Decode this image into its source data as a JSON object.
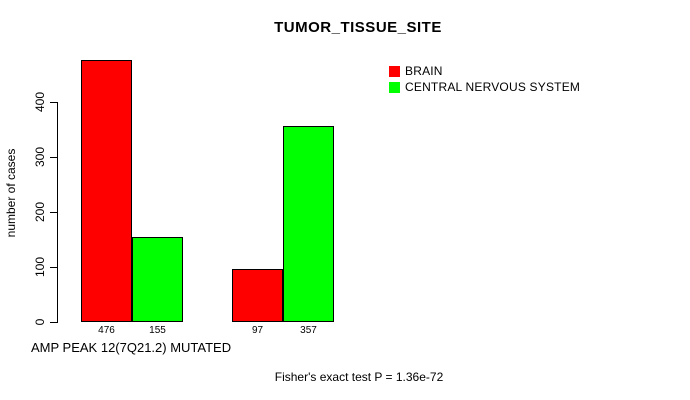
{
  "chart_data": {
    "type": "bar",
    "title": "TUMOR_TISSUE_SITE",
    "xlabel": "AMP PEAK 12(7Q21.2) MUTATED",
    "ylabel": "number of cases",
    "yticks": [
      0,
      100,
      200,
      300,
      400
    ],
    "ylim": [
      0,
      480
    ],
    "grid": false,
    "legend_position": "top-right",
    "categories": [
      "group-1",
      "group-2"
    ],
    "series": [
      {
        "name": "BRAIN",
        "color": "#ff0000",
        "values": [
          476,
          97
        ]
      },
      {
        "name": "CENTRAL NERVOUS SYSTEM",
        "color": "#00ff00",
        "values": [
          155,
          357
        ]
      }
    ],
    "bar_value_labels": [
      "476",
      "155",
      "97",
      "357"
    ],
    "annotation": "Fisher's exact test P = 1.36e-72"
  },
  "colors": {
    "background": "#ffffff",
    "text": "#000000",
    "axis": "#000000",
    "bar_border": "#000000",
    "brain": "#ff0000",
    "cns": "#00ff00"
  }
}
